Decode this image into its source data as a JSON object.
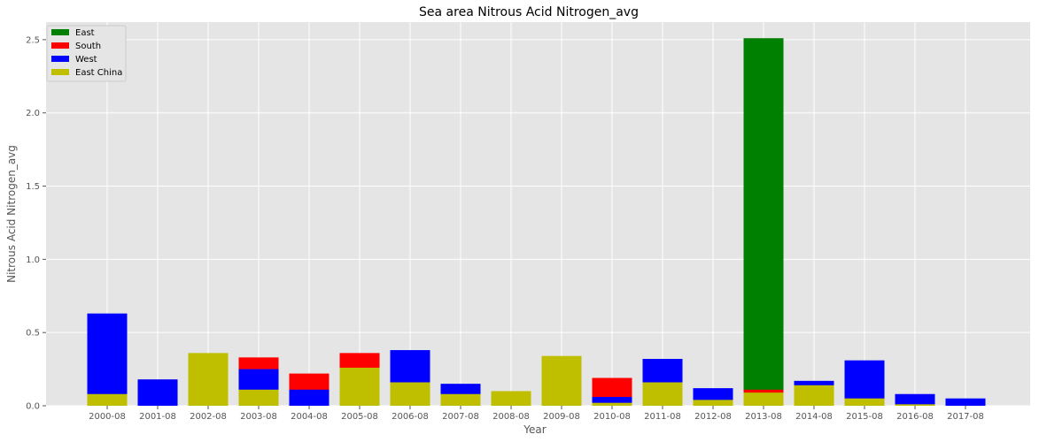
{
  "chart_data": {
    "type": "bar",
    "stacked": true,
    "title": "Sea area Nitrous Acid Nitrogen_avg",
    "xlabel": "Year",
    "ylabel": "Nitrous Acid Nitrogen_avg",
    "ylim": [
      0,
      2.62
    ],
    "yticks": [
      0.0,
      0.5,
      1.0,
      1.5,
      2.0,
      2.5
    ],
    "ytick_labels": [
      "0.0",
      "0.5",
      "1.0",
      "1.5",
      "2.0",
      "2.5"
    ],
    "grid": true,
    "legend_position": "top-left",
    "categories": [
      "2000-08",
      "2001-08",
      "2002-08",
      "2003-08",
      "2004-08",
      "2005-08",
      "2006-08",
      "2007-08",
      "2008-08",
      "2009-08",
      "2010-08",
      "2011-08",
      "2012-08",
      "2013-08",
      "2014-08",
      "2015-08",
      "2016-08",
      "2017-08"
    ],
    "series": [
      {
        "name": "East",
        "color": "#008000",
        "values": [
          0,
          0,
          0,
          0,
          0,
          0,
          0,
          0,
          0,
          0,
          0,
          0,
          0,
          2.51,
          0,
          0,
          0,
          0
        ]
      },
      {
        "name": "South",
        "color": "#ff0000",
        "values": [
          0,
          0,
          0,
          0.33,
          0.22,
          0.36,
          0,
          0,
          0,
          0,
          0.19,
          0,
          0,
          0.11,
          0,
          0,
          0,
          0
        ]
      },
      {
        "name": "West",
        "color": "#0000ff",
        "values": [
          0.63,
          0.18,
          0,
          0.25,
          0.11,
          0,
          0.38,
          0.15,
          0,
          0,
          0.06,
          0.32,
          0.12,
          0.08,
          0.17,
          0.31,
          0.08,
          0.05
        ]
      },
      {
        "name": "East China",
        "color": "#bfbf00",
        "values": [
          0.08,
          0,
          0.36,
          0.11,
          0,
          0.26,
          0.16,
          0.08,
          0.1,
          0.34,
          0.02,
          0.16,
          0.04,
          0.09,
          0.14,
          0.05,
          0.01,
          0
        ]
      }
    ]
  }
}
